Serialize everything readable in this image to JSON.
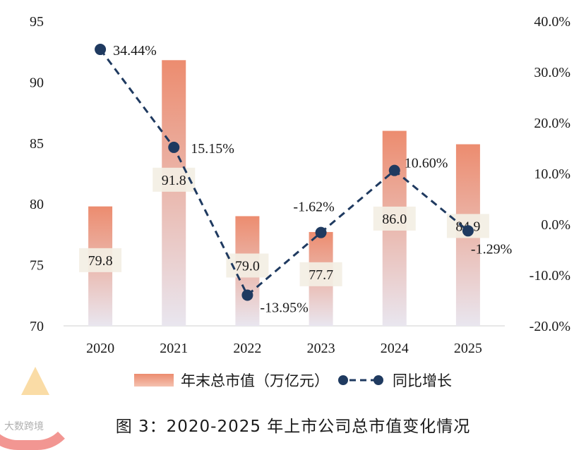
{
  "chart_data": {
    "type": "bar",
    "categories": [
      "2020",
      "2021",
      "2022",
      "2023",
      "2024",
      "2025"
    ],
    "series": [
      {
        "name": "年末总市值（万亿元）",
        "type": "bar",
        "axis": "left",
        "values": [
          79.8,
          91.8,
          79.0,
          77.7,
          86.0,
          84.9
        ],
        "labels": [
          "79.8",
          "91.8",
          "79.0",
          "77.7",
          "86.0",
          "84.9"
        ]
      },
      {
        "name": "同比增长",
        "type": "line",
        "style": "dashed",
        "axis": "right",
        "values": [
          34.44,
          15.15,
          -13.95,
          -1.62,
          10.6,
          -1.29
        ],
        "labels": [
          "34.44%",
          "15.15%",
          "-13.95%",
          "-1.62%",
          "10.60%",
          "-1.29%"
        ]
      }
    ],
    "ylim_left": [
      70,
      95
    ],
    "yticks_left": [
      "70",
      "75",
      "80",
      "85",
      "90",
      "95"
    ],
    "ylim_right": [
      -20,
      40
    ],
    "yticks_right": [
      "-20.0%",
      "-10.0%",
      "0.0%",
      "10.0%",
      "20.0%",
      "30.0%",
      "40.0%"
    ],
    "legend_position": "bottom",
    "grid": false,
    "colors": {
      "bar_top": "#ec8c6f",
      "bar_bottom": "#e8e4ee",
      "line": "#1f3a60"
    }
  },
  "legend": {
    "bar_label": "年末总市值（万亿元）",
    "line_label": "同比增长"
  },
  "caption": "图 3：2020-2025 年上市公司总市值变化情况",
  "source": "大数跨境"
}
